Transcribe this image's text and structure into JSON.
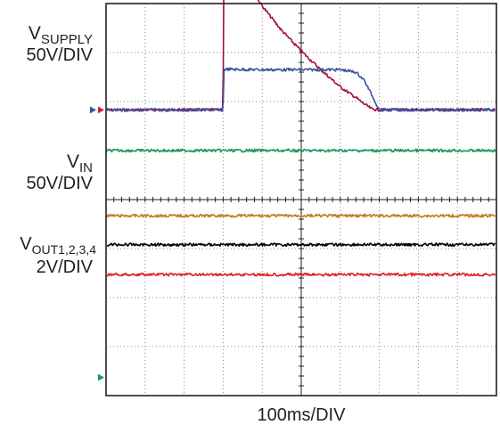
{
  "chart_data": {
    "type": "line",
    "title": "",
    "xlabel": "100ms/DIV",
    "grid": true,
    "x_divisions": 10,
    "y_divisions": 8,
    "x_unit": "ms",
    "x_range": [
      0,
      1000
    ],
    "channels": [
      {
        "label_main": "V",
        "label_sub": "SUPPLY",
        "scale": "50V/DIV",
        "color": "#a3103a",
        "unit": "div",
        "x": [
          0,
          295,
          300,
          301,
          350,
          400,
          450,
          500,
          550,
          600,
          640,
          660,
          680,
          700,
          1000
        ],
        "y": [
          1.83,
          1.83,
          1.83,
          5.32,
          4.55,
          3.95,
          3.45,
          3.03,
          2.65,
          2.3,
          2.08,
          1.96,
          1.85,
          1.83,
          1.83
        ]
      },
      {
        "label_main": "V",
        "label_sub": "IN",
        "scale": "50V/DIV",
        "color": "#3a53a4",
        "unit": "div",
        "x": [
          0,
          295,
          300,
          301,
          400,
          500,
          600,
          640,
          660,
          680,
          700,
          1000
        ],
        "y": [
          1.83,
          1.83,
          1.83,
          2.66,
          2.65,
          2.65,
          2.65,
          2.6,
          2.45,
          2.15,
          1.83,
          1.83
        ]
      },
      {
        "label_main": "V",
        "label_sub": "OUT1,2,3,4",
        "scale": "2V/DIV",
        "color": "#1a9a5a",
        "unit": "div",
        "x": [
          0,
          1000
        ],
        "y": [
          1.0,
          1.0
        ]
      },
      {
        "label_main": "",
        "label_sub": "",
        "scale": "",
        "color": "#c57a1e",
        "unit": "div",
        "x": [
          0,
          1000
        ],
        "y": [
          -0.33,
          -0.33
        ]
      },
      {
        "label_main": "",
        "label_sub": "",
        "scale": "",
        "color": "#000000",
        "unit": "div",
        "x": [
          0,
          1000
        ],
        "y": [
          -0.92,
          -0.92
        ]
      },
      {
        "label_main": "",
        "label_sub": "",
        "scale": "",
        "color": "#d9222a",
        "unit": "div",
        "x": [
          0,
          1000
        ],
        "y": [
          -1.53,
          -1.53
        ]
      }
    ],
    "markers": [
      {
        "color": "#3a53a4",
        "level": 1.83
      },
      {
        "color": "#d9222a",
        "level": 1.83
      },
      {
        "color": "#1a9a5a",
        "level": -3.63
      }
    ]
  }
}
